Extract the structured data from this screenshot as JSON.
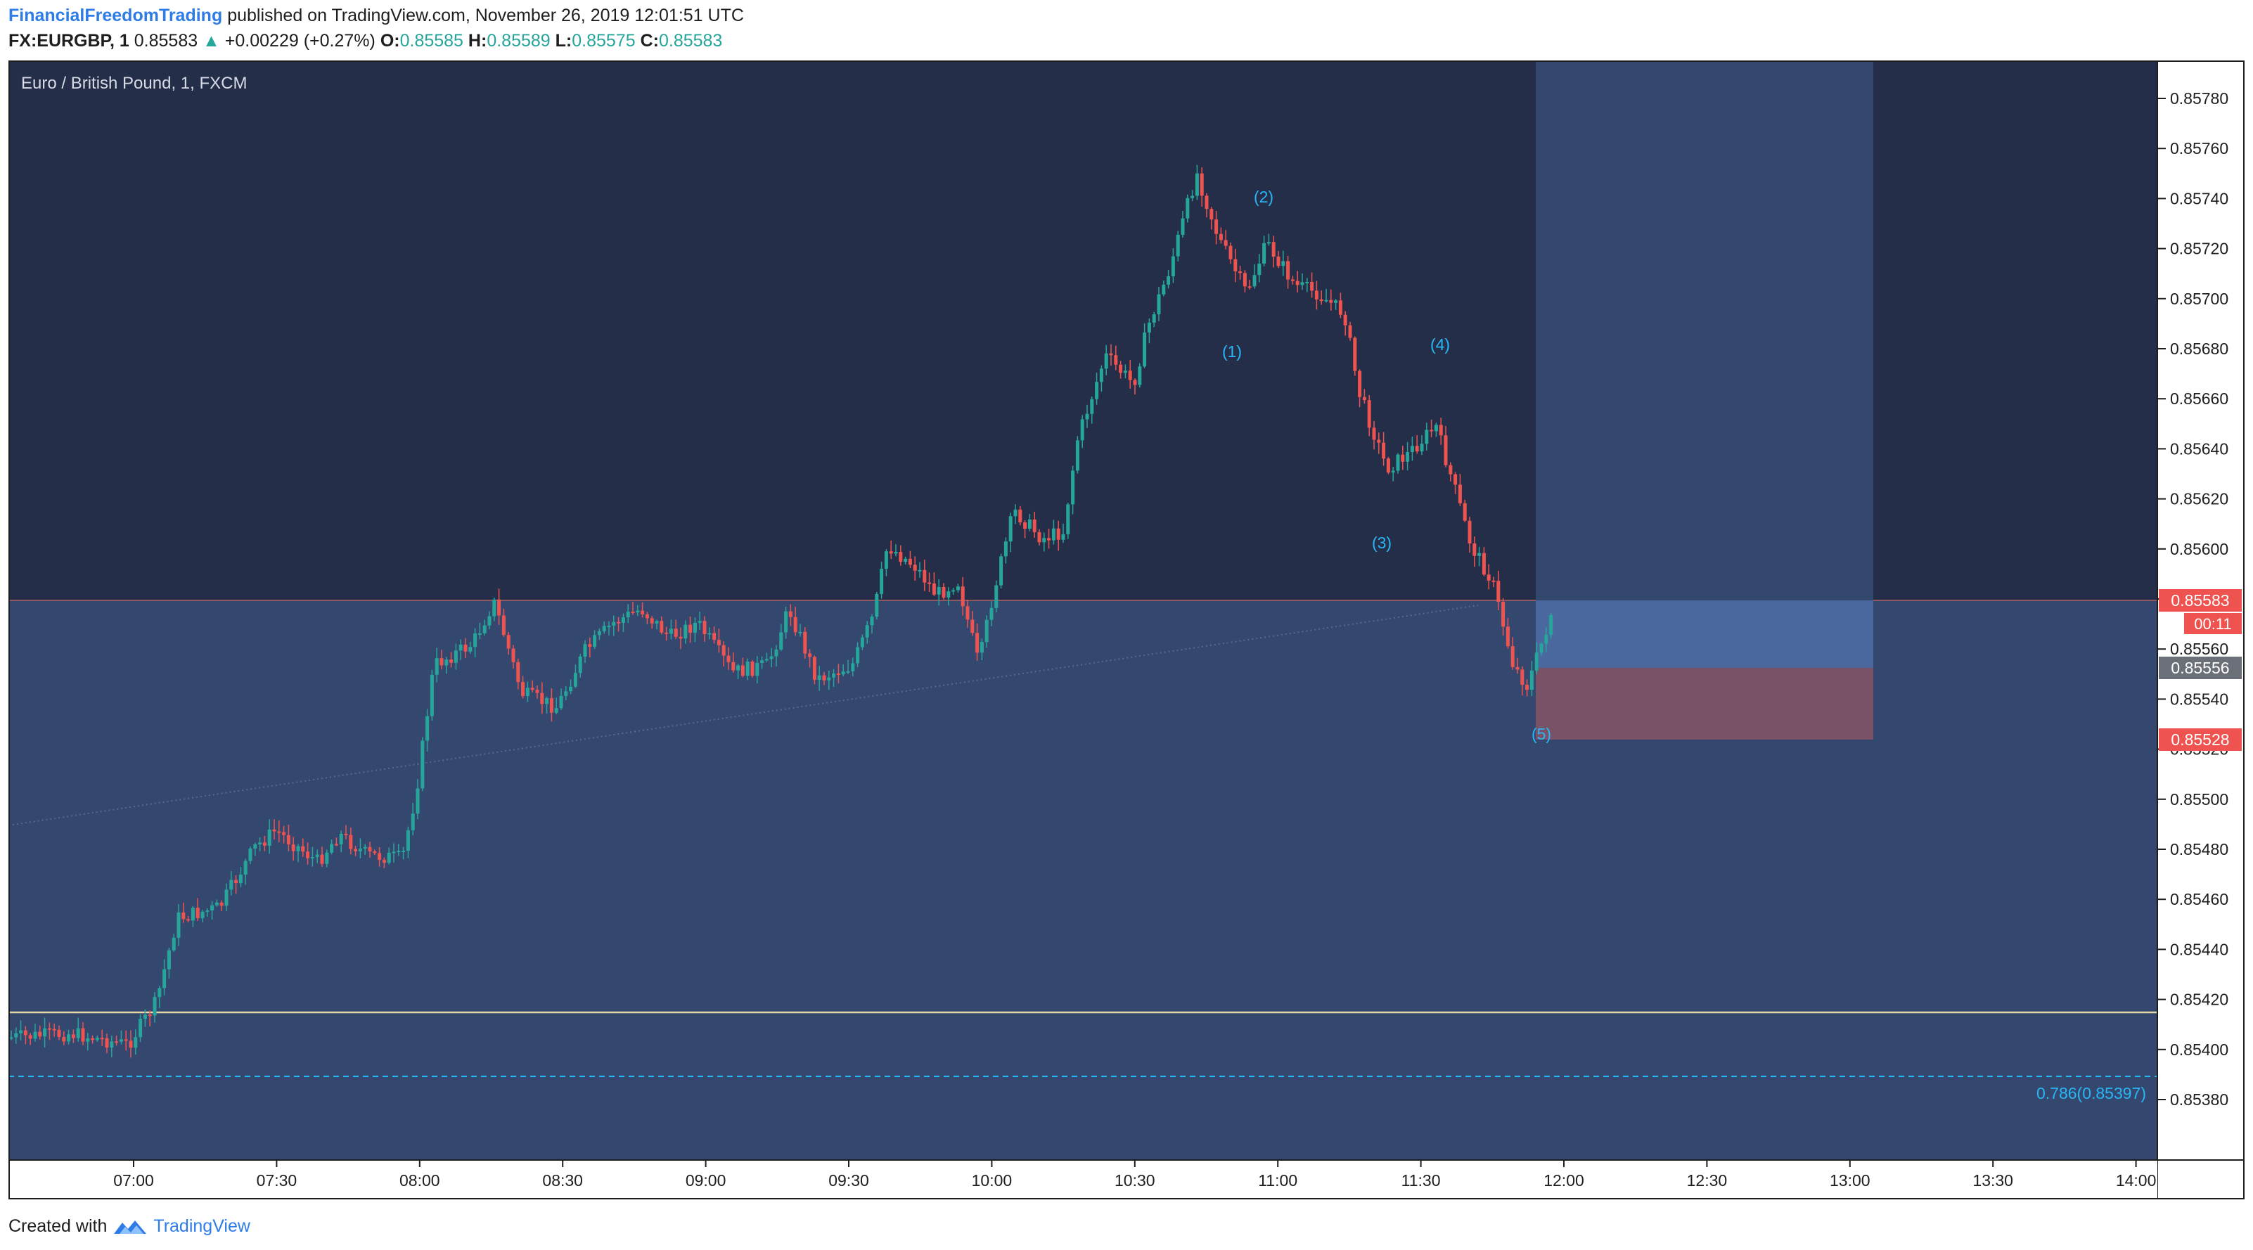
{
  "header": {
    "author": "FinancialFreedomTrading",
    "published_text": "published on TradingView.com, November 26, 2019 12:01:51 UTC",
    "symbol": "FX:EURGBP, 1",
    "price": "0.85583",
    "change": "+0.00229 (+0.27%)",
    "o_label": "O:",
    "o_value": "0.85585",
    "h_label": "H:",
    "h_value": "0.85589",
    "l_label": "L:",
    "l_value": "0.85575",
    "c_label": "C:",
    "c_value": "0.85583"
  },
  "chart": {
    "pane_title": "Euro / British Pound, 1, FXCM",
    "price_ticks": [
      "0.85780",
      "0.85760",
      "0.85740",
      "0.85720",
      "0.85700",
      "0.85680",
      "0.85660",
      "0.85640",
      "0.85620",
      "0.85600",
      "0.85580",
      "0.85560",
      "0.85540",
      "0.85520",
      "0.85500",
      "0.85480",
      "0.85460",
      "0.85440",
      "0.85420",
      "0.85400",
      "0.85380"
    ],
    "time_ticks": [
      "07:00",
      "07:30",
      "08:00",
      "08:30",
      "09:00",
      "09:30",
      "10:00",
      "10:30",
      "11:00",
      "11:30",
      "12:00",
      "12:30",
      "13:00",
      "13:30",
      "14:00"
    ],
    "price_badges": {
      "last": "0.85583",
      "countdown": "00:11",
      "entry": "0.85556",
      "stop": "0.85528"
    },
    "wave_labels": [
      "(1)",
      "(2)",
      "(3)",
      "(4)",
      "(5)"
    ],
    "fib_label": "0.786(0.85397)",
    "colors": {
      "up": "#26a69a",
      "down": "#ef5350",
      "background": "#252e48",
      "zone": "#34486f",
      "fib": "#29b6f6"
    }
  },
  "footer": {
    "created_with": "Created with",
    "brand": "TradingView"
  }
}
